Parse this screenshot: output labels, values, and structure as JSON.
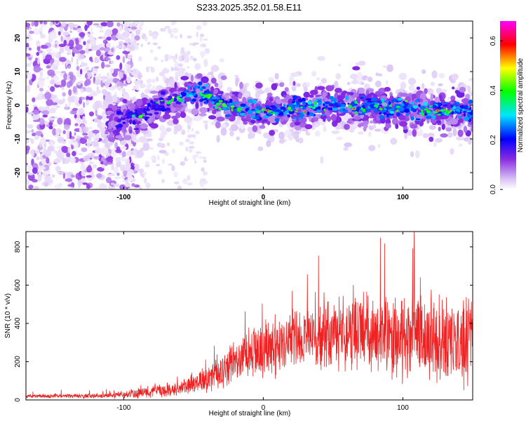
{
  "title": "S233.2025.352.01.58.E11",
  "colors": {
    "snr_line": "#ee2222",
    "axis": "#000000"
  },
  "chart_data": [
    {
      "type": "heatmap",
      "title": "S233.2025.352.01.58.E11",
      "xlabel": "Height of straight line (km)",
      "ylabel": "Frequency (Hz)",
      "xlim": [
        -170,
        150
      ],
      "ylim": [
        -25,
        25
      ],
      "x_ticks": [
        {
          "value": -100,
          "label": "-100"
        },
        {
          "value": 0,
          "label": "0"
        },
        {
          "value": 100,
          "label": "100"
        }
      ],
      "y_ticks": [
        {
          "value": -20,
          "label": "-20"
        },
        {
          "value": -10,
          "label": "-10"
        },
        {
          "value": 0,
          "label": "0"
        },
        {
          "value": 10,
          "label": "10"
        },
        {
          "value": 20,
          "label": "20"
        }
      ],
      "colorbar": {
        "label": "Normalized spectral amplitude",
        "range": [
          0.0,
          0.68
        ],
        "ticks": [
          {
            "value": 0.0,
            "label": "0.0"
          },
          {
            "value": 0.2,
            "label": "0.2"
          },
          {
            "value": 0.4,
            "label": "0.4"
          },
          {
            "value": 0.6,
            "label": "0.6"
          }
        ],
        "colormap": [
          "#ffffff",
          "#d9c4f5",
          "#8a2be2",
          "#0000ff",
          "#00e5ff",
          "#00ff00",
          "#ffff00",
          "#ff0000",
          "#ff00ff"
        ]
      },
      "ridge": {
        "description_points": [
          {
            "x": -110,
            "freq": -5
          },
          {
            "x": -90,
            "freq": -3
          },
          {
            "x": -70,
            "freq": 1
          },
          {
            "x": -45,
            "freq": 4
          },
          {
            "x": -30,
            "freq": 0
          },
          {
            "x": 0,
            "freq": -2
          },
          {
            "x": 50,
            "freq": 0
          },
          {
            "x": 100,
            "freq": -1
          },
          {
            "x": 150,
            "freq": -2
          }
        ],
        "noise_region_x": [
          -170,
          -100
        ]
      }
    },
    {
      "type": "line",
      "xlabel": "Height of straight line (km)",
      "ylabel": "SNR (10 * v/v)",
      "xlim": [
        -170,
        150
      ],
      "ylim": [
        0,
        880
      ],
      "x_ticks": [
        {
          "value": -100,
          "label": "-100"
        },
        {
          "value": 0,
          "label": "0"
        },
        {
          "value": 100,
          "label": "100"
        }
      ],
      "y_ticks": [
        {
          "value": 0,
          "label": "0"
        },
        {
          "value": 200,
          "label": "200"
        },
        {
          "value": 400,
          "label": "400"
        },
        {
          "value": 600,
          "label": "600"
        },
        {
          "value": 800,
          "label": "800"
        }
      ],
      "series": [
        {
          "name": "SNR",
          "envelope": [
            {
              "x": -170,
              "mean": 20,
              "spread": 10
            },
            {
              "x": -110,
              "mean": 22,
              "spread": 15
            },
            {
              "x": -90,
              "mean": 35,
              "spread": 30
            },
            {
              "x": -60,
              "mean": 60,
              "spread": 40
            },
            {
              "x": -40,
              "mean": 110,
              "spread": 70
            },
            {
              "x": -20,
              "mean": 200,
              "spread": 120
            },
            {
              "x": 0,
              "mean": 260,
              "spread": 160
            },
            {
              "x": 30,
              "mean": 330,
              "spread": 180
            },
            {
              "x": 60,
              "mean": 350,
              "spread": 200
            },
            {
              "x": 100,
              "mean": 340,
              "spread": 240
            },
            {
              "x": 150,
              "mean": 310,
              "spread": 260
            }
          ],
          "peak": {
            "x": 108,
            "y": 880
          }
        }
      ]
    }
  ]
}
